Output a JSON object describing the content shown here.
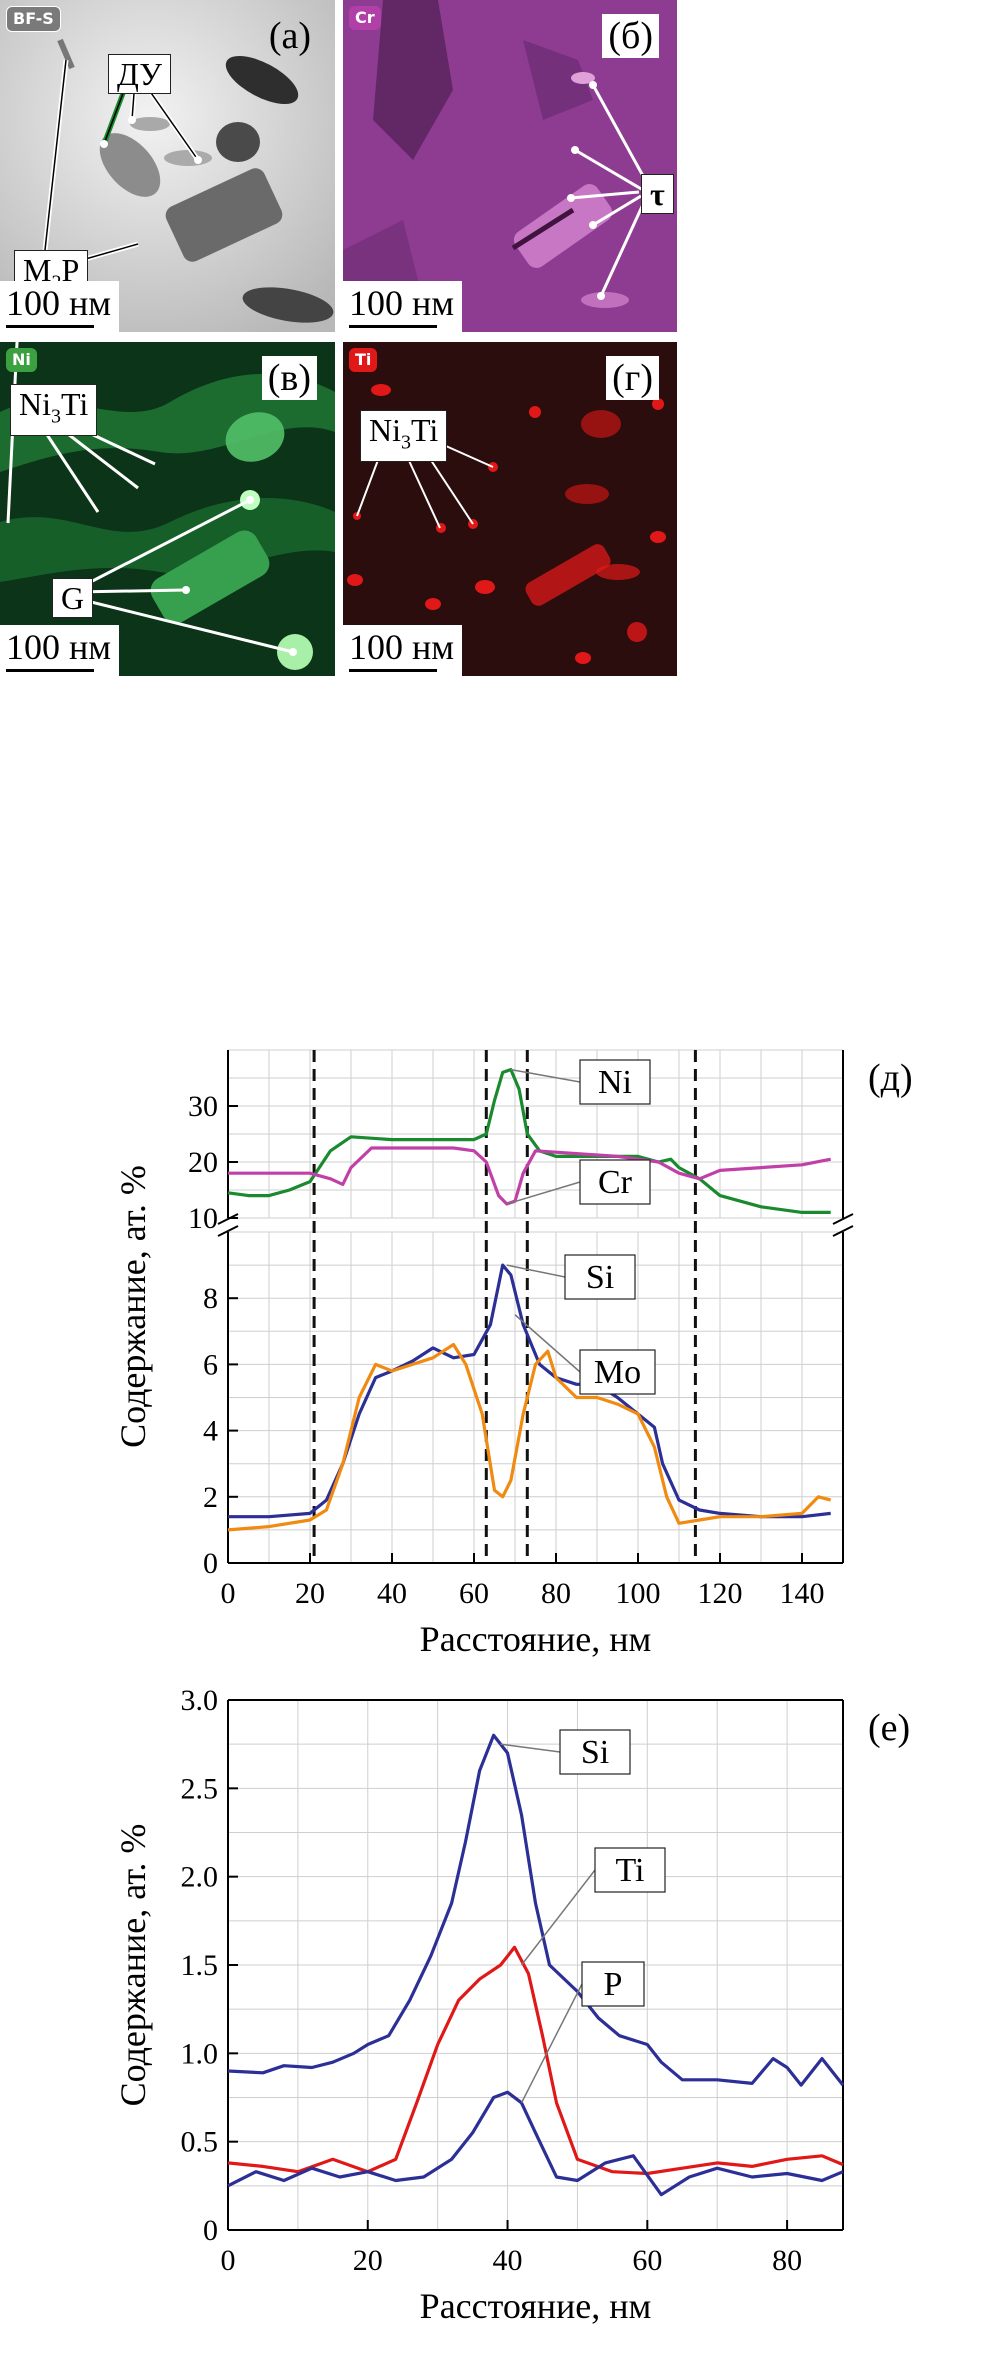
{
  "micrographs": {
    "a": {
      "label": "(а)",
      "chip": "BF-S",
      "scale": "100 нм",
      "annotations": {
        "du": "ДУ",
        "m2p_base": "M",
        "m2p_sub": "2",
        "m2p_end": "P"
      }
    },
    "b": {
      "label": "(б)",
      "chip": "Cr",
      "scale": "100 нм",
      "annotations": {
        "tau": "τ"
      }
    },
    "c": {
      "label": "(в)",
      "chip": "Ni",
      "scale": "100 нм",
      "annotations": {
        "ni3ti_base": "Ni",
        "ni3ti_sub": "3",
        "ni3ti_end": "Ti",
        "g": "G"
      }
    },
    "d": {
      "label": "(г)",
      "chip": "Ti",
      "scale": "100 нм",
      "annotations": {
        "ni3ti_base": "Ni",
        "ni3ti_sub": "3",
        "ni3ti_end": "Ti"
      }
    }
  },
  "colors": {
    "green": "#1a8a2e",
    "magenta": "#c040a8",
    "blue": "#2b2f96",
    "orange": "#f08a10",
    "red": "#e01818"
  },
  "chart_data": [
    {
      "type": "line",
      "panel_label": "(д)",
      "xlabel": "Расстояние, нм",
      "ylabel": "Содержание, ат. %",
      "xlim": [
        0,
        150
      ],
      "x_ticks": [
        0,
        20,
        40,
        60,
        80,
        100,
        120,
        140
      ],
      "broken_axis": true,
      "upper_ylim": [
        10,
        40
      ],
      "upper_y_ticks": [
        10,
        20,
        30
      ],
      "lower_ylim": [
        0,
        10
      ],
      "lower_y_ticks": [
        0,
        2,
        4,
        6,
        8
      ],
      "grid": true,
      "dashed_vlines": [
        21,
        63,
        73,
        114
      ],
      "series": [
        {
          "name": "Ni",
          "panel": "upper",
          "color": "#1a8a2e",
          "points": [
            [
              0,
              14.5
            ],
            [
              5,
              14
            ],
            [
              10,
              14
            ],
            [
              15,
              15
            ],
            [
              20,
              16.5
            ],
            [
              25,
              22
            ],
            [
              30,
              24.5
            ],
            [
              40,
              24
            ],
            [
              50,
              24
            ],
            [
              60,
              24
            ],
            [
              63,
              25
            ],
            [
              65,
              31
            ],
            [
              67,
              36
            ],
            [
              69,
              36.5
            ],
            [
              71,
              33
            ],
            [
              73,
              25
            ],
            [
              76,
              22
            ],
            [
              80,
              21
            ],
            [
              90,
              21
            ],
            [
              100,
              21
            ],
            [
              105,
              20
            ],
            [
              108,
              20.5
            ],
            [
              110,
              19
            ],
            [
              115,
              17
            ],
            [
              120,
              14
            ],
            [
              125,
              13
            ],
            [
              130,
              12
            ],
            [
              140,
              11
            ],
            [
              147,
              11
            ]
          ]
        },
        {
          "name": "Cr",
          "panel": "upper",
          "color": "#c040a8",
          "points": [
            [
              0,
              18
            ],
            [
              10,
              18
            ],
            [
              20,
              18
            ],
            [
              25,
              17
            ],
            [
              28,
              16
            ],
            [
              30,
              19
            ],
            [
              35,
              22.5
            ],
            [
              45,
              22.5
            ],
            [
              55,
              22.5
            ],
            [
              60,
              22
            ],
            [
              63,
              20
            ],
            [
              66,
              14
            ],
            [
              68,
              12.5
            ],
            [
              70,
              13
            ],
            [
              72,
              18
            ],
            [
              75,
              22
            ],
            [
              85,
              21.5
            ],
            [
              95,
              21
            ],
            [
              105,
              20
            ],
            [
              110,
              18
            ],
            [
              115,
              17
            ],
            [
              120,
              18.5
            ],
            [
              130,
              19
            ],
            [
              140,
              19.5
            ],
            [
              147,
              20.5
            ]
          ]
        },
        {
          "name": "Si",
          "panel": "lower",
          "color": "#2b2f96",
          "points": [
            [
              0,
              1.4
            ],
            [
              10,
              1.4
            ],
            [
              20,
              1.5
            ],
            [
              24,
              1.9
            ],
            [
              28,
              3
            ],
            [
              32,
              4.5
            ],
            [
              36,
              5.6
            ],
            [
              40,
              5.8
            ],
            [
              45,
              6.1
            ],
            [
              50,
              6.5
            ],
            [
              55,
              6.2
            ],
            [
              60,
              6.3
            ],
            [
              64,
              7.2
            ],
            [
              67,
              9
            ],
            [
              69,
              8.7
            ],
            [
              72,
              7.2
            ],
            [
              76,
              6
            ],
            [
              80,
              5.6
            ],
            [
              85,
              5.4
            ],
            [
              90,
              5.4
            ],
            [
              95,
              5
            ],
            [
              100,
              4.5
            ],
            [
              104,
              4.1
            ],
            [
              106,
              3
            ],
            [
              110,
              1.9
            ],
            [
              115,
              1.6
            ],
            [
              120,
              1.5
            ],
            [
              130,
              1.4
            ],
            [
              140,
              1.4
            ],
            [
              147,
              1.5
            ]
          ]
        },
        {
          "name": "Mo",
          "panel": "lower",
          "color": "#f08a10",
          "points": [
            [
              0,
              1
            ],
            [
              10,
              1.1
            ],
            [
              20,
              1.3
            ],
            [
              24,
              1.6
            ],
            [
              28,
              3
            ],
            [
              32,
              5
            ],
            [
              36,
              6
            ],
            [
              40,
              5.8
            ],
            [
              45,
              6
            ],
            [
              50,
              6.2
            ],
            [
              55,
              6.6
            ],
            [
              58,
              6
            ],
            [
              62,
              4.5
            ],
            [
              65,
              2.2
            ],
            [
              67,
              2
            ],
            [
              69,
              2.5
            ],
            [
              72,
              4.5
            ],
            [
              75,
              6
            ],
            [
              78,
              6.4
            ],
            [
              80,
              5.6
            ],
            [
              85,
              5
            ],
            [
              90,
              5
            ],
            [
              95,
              4.8
            ],
            [
              100,
              4.5
            ],
            [
              104,
              3.5
            ],
            [
              107,
              2
            ],
            [
              110,
              1.2
            ],
            [
              115,
              1.3
            ],
            [
              120,
              1.4
            ],
            [
              130,
              1.4
            ],
            [
              140,
              1.5
            ],
            [
              144,
              2
            ],
            [
              147,
              1.9
            ]
          ]
        }
      ]
    },
    {
      "type": "line",
      "panel_label": "(е)",
      "xlabel": "Расстояние, нм",
      "ylabel": "Содержание, ат. %",
      "xlim": [
        0,
        88
      ],
      "x_ticks": [
        0,
        20,
        40,
        60,
        80
      ],
      "ylim": [
        0,
        3
      ],
      "y_ticks": [
        "0",
        "0.5",
        "1.0",
        "1.5",
        "2.0",
        "2.5",
        "3.0"
      ],
      "y_tick_values": [
        0,
        0.5,
        1,
        1.5,
        2,
        2.5,
        3
      ],
      "grid": true,
      "series": [
        {
          "name": "Si",
          "color": "#2b2f96",
          "points": [
            [
              0,
              0.9
            ],
            [
              5,
              0.89
            ],
            [
              8,
              0.93
            ],
            [
              12,
              0.92
            ],
            [
              15,
              0.95
            ],
            [
              18,
              1.0
            ],
            [
              20,
              1.05
            ],
            [
              23,
              1.1
            ],
            [
              26,
              1.3
            ],
            [
              29,
              1.55
            ],
            [
              32,
              1.85
            ],
            [
              34,
              2.2
            ],
            [
              36,
              2.6
            ],
            [
              38,
              2.8
            ],
            [
              40,
              2.7
            ],
            [
              42,
              2.35
            ],
            [
              44,
              1.85
            ],
            [
              46,
              1.5
            ],
            [
              50,
              1.35
            ],
            [
              53,
              1.2
            ],
            [
              56,
              1.1
            ],
            [
              60,
              1.05
            ],
            [
              62,
              0.95
            ],
            [
              65,
              0.85
            ],
            [
              70,
              0.85
            ],
            [
              75,
              0.83
            ],
            [
              78,
              0.97
            ],
            [
              80,
              0.92
            ],
            [
              82,
              0.82
            ],
            [
              85,
              0.97
            ],
            [
              88,
              0.82
            ]
          ]
        },
        {
          "name": "Ti",
          "color": "#e01818",
          "points": [
            [
              0,
              0.38
            ],
            [
              5,
              0.36
            ],
            [
              10,
              0.33
            ],
            [
              15,
              0.4
            ],
            [
              20,
              0.33
            ],
            [
              24,
              0.4
            ],
            [
              27,
              0.72
            ],
            [
              30,
              1.05
            ],
            [
              33,
              1.3
            ],
            [
              36,
              1.42
            ],
            [
              39,
              1.5
            ],
            [
              41,
              1.6
            ],
            [
              43,
              1.45
            ],
            [
              45,
              1.1
            ],
            [
              47,
              0.72
            ],
            [
              50,
              0.4
            ],
            [
              55,
              0.33
            ],
            [
              60,
              0.32
            ],
            [
              65,
              0.35
            ],
            [
              70,
              0.38
            ],
            [
              75,
              0.36
            ],
            [
              80,
              0.4
            ],
            [
              85,
              0.42
            ],
            [
              88,
              0.37
            ]
          ]
        },
        {
          "name": "P",
          "color": "#2b2f96",
          "points": [
            [
              0,
              0.25
            ],
            [
              4,
              0.33
            ],
            [
              8,
              0.28
            ],
            [
              12,
              0.35
            ],
            [
              16,
              0.3
            ],
            [
              20,
              0.33
            ],
            [
              24,
              0.28
            ],
            [
              28,
              0.3
            ],
            [
              32,
              0.4
            ],
            [
              35,
              0.55
            ],
            [
              38,
              0.75
            ],
            [
              40,
              0.78
            ],
            [
              42,
              0.72
            ],
            [
              44,
              0.55
            ],
            [
              47,
              0.3
            ],
            [
              50,
              0.28
            ],
            [
              54,
              0.38
            ],
            [
              58,
              0.42
            ],
            [
              62,
              0.2
            ],
            [
              66,
              0.3
            ],
            [
              70,
              0.35
            ],
            [
              75,
              0.3
            ],
            [
              80,
              0.32
            ],
            [
              85,
              0.28
            ],
            [
              88,
              0.33
            ]
          ]
        }
      ]
    }
  ]
}
